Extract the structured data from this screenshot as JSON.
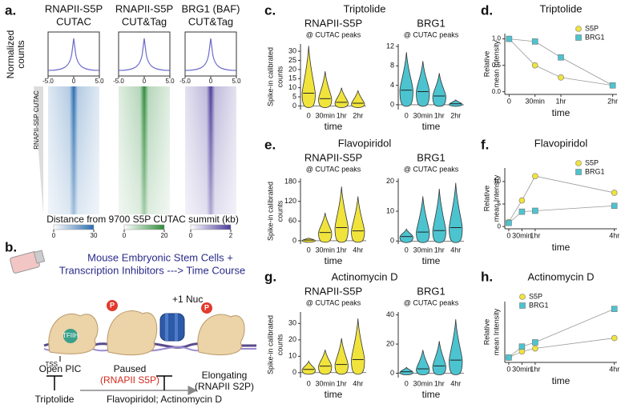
{
  "panel_labels": [
    "a.",
    "b.",
    "c.",
    "d.",
    "e.",
    "f.",
    "g.",
    "h."
  ],
  "heatmaps": {
    "columns": [
      {
        "title": [
          "RNAPII-S5P",
          "CUTAC"
        ],
        "colorbar": [
          0,
          30
        ],
        "color": "#2b6cb0"
      },
      {
        "title": [
          "RNAPII-S5P",
          "CUT&Tag"
        ],
        "colorbar": [
          0,
          20
        ],
        "color": "#2e8b3a"
      },
      {
        "title": [
          "BRG1 (BAF)",
          "CUT&Tag"
        ],
        "colorbar": [
          0,
          2
        ],
        "color": "#4b3a9a"
      }
    ],
    "profile_xlim": [
      -5,
      5
    ],
    "profile_xticks": [
      {
        "value": -5,
        "label": "-5.0"
      },
      0,
      {
        "value": 5,
        "label": "5.0"
      }
    ],
    "ylabel": [
      "Normalized",
      "counts"
    ],
    "row_label": "RNAPII-S5P CUTAC",
    "xlabel": "Distance from 9700 S5P CUTAC summit (kb)"
  },
  "schematic": {
    "cells": [
      "Mouse Embryonic Stem Cells +",
      "Transcription Inhibitors ---> Time Course"
    ],
    "nuc": "+1 Nuc",
    "tfiih": "TFIIH",
    "tss": "TSS",
    "phospho": "P",
    "stages": [
      {
        "name": "Open PIC"
      },
      {
        "name": "Paused",
        "detail": "(RNAPII S5P)"
      },
      {
        "name": "Elongating",
        "detail": "(RNAPII S2P)"
      }
    ],
    "inhibitors": [
      "Triptolide",
      "Flavopiridol; Actinomycin D"
    ]
  },
  "chart_data": [
    {
      "type": "violin",
      "title": "Triptolide",
      "subtitle": [
        "RNAPII-S5P",
        "@ CUTAC peaks"
      ],
      "ylabel": [
        "Spike-in calibrated",
        "counts"
      ],
      "xlabel": "time",
      "categories": [
        "0",
        "30min",
        "1hr",
        "2hr"
      ],
      "color": "#f0e43c",
      "ylim": [
        -2,
        34
      ],
      "yticks": [
        0,
        5,
        10,
        15,
        20,
        25,
        30
      ],
      "medians": [
        7,
        4,
        2,
        1.5
      ],
      "maxima": [
        33,
        19,
        10,
        8.5
      ]
    },
    {
      "type": "violin",
      "subtitle": [
        "BRG1",
        "@ CUTAC peaks"
      ],
      "xlabel": "time",
      "categories": [
        "0",
        "30min",
        "1hr",
        "2hr"
      ],
      "color": "#4cc4d0",
      "ylim": [
        -1,
        12.5
      ],
      "yticks": [
        0,
        4,
        8,
        12
      ],
      "medians": [
        3,
        2.7,
        1.8,
        0.2
      ],
      "maxima": [
        10.8,
        9,
        6.5,
        1
      ]
    },
    {
      "type": "scatter",
      "title": "Triptolide",
      "ylabel": [
        "Relative",
        "mean Intensity"
      ],
      "xlabel": "time",
      "legend": "upper right",
      "x": [
        0,
        30,
        60,
        120
      ],
      "xlim": [
        -5,
        125
      ],
      "xticks": [
        0,
        {
          "value": 30,
          "label": "30min"
        },
        {
          "value": 60,
          "label": "1hr"
        },
        {
          "value": 120,
          "label": "2hr"
        }
      ],
      "ylim": [
        -0.05,
        1.1
      ],
      "yticks": [
        {
          "value": 0,
          "label": "0.0"
        },
        {
          "value": 0.5,
          "label": "0.5"
        },
        {
          "value": 1,
          "label": "1.0"
        }
      ],
      "series": [
        {
          "name": "S5P",
          "color": "#f0e43c",
          "values": [
            1.0,
            0.5,
            0.27,
            0.12
          ]
        },
        {
          "name": "BRG1",
          "color": "#4cc4d0",
          "values": [
            1.0,
            0.95,
            0.65,
            0.12
          ]
        }
      ]
    },
    {
      "type": "violin",
      "title": "Flavopiridol",
      "subtitle": [
        "RNAPII-S5P",
        "@ CUTAC peaks"
      ],
      "ylabel": [
        "Spike-in calibrated",
        "counts"
      ],
      "xlabel": "time",
      "categories": [
        "0",
        "30min",
        "1hr",
        "4hr"
      ],
      "color": "#f0e43c",
      "ylim": [
        -10,
        190
      ],
      "yticks": [
        0,
        60,
        120,
        180
      ],
      "medians": [
        2,
        25,
        40,
        30
      ],
      "maxima": [
        8,
        85,
        165,
        135
      ]
    },
    {
      "type": "violin",
      "subtitle": [
        "BRG1",
        "@ CUTAC peaks"
      ],
      "xlabel": "time",
      "categories": [
        "0",
        "30min",
        "1hr",
        "4hr"
      ],
      "color": "#4cc4d0",
      "ylim": [
        -1,
        21
      ],
      "yticks": [
        0,
        10,
        20
      ],
      "medians": [
        1.5,
        3,
        3.5,
        4.5
      ],
      "maxima": [
        4,
        15,
        17.5,
        19.5
      ]
    },
    {
      "type": "scatter",
      "title": "Flavopiridol",
      "ylabel": [
        "Relative",
        "mean Intensity"
      ],
      "xlabel": "time",
      "legend": "upper right",
      "x": [
        0,
        0.5,
        1,
        4
      ],
      "xlim": [
        -0.15,
        4.1
      ],
      "xticks": [
        0,
        {
          "value": 0.5,
          "label": "30min"
        },
        {
          "value": 1,
          "label": "1hr"
        },
        {
          "value": 4,
          "label": "4hr"
        }
      ],
      "ylim": [
        -0.5,
        13
      ],
      "yticks": [
        0,
        5,
        10
      ],
      "series": [
        {
          "name": "S5P",
          "color": "#f0e43c",
          "values": [
            1,
            5.8,
            11.2,
            7.5
          ]
        },
        {
          "name": "BRG1",
          "color": "#4cc4d0",
          "values": [
            0.8,
            3.3,
            3.5,
            4.6
          ]
        }
      ]
    },
    {
      "type": "violin",
      "title": "Actinomycin D",
      "subtitle": [
        "RNAPII-S5P",
        "@ CUTAC peaks"
      ],
      "ylabel": [
        "Spike-in calibrated",
        "counts"
      ],
      "xlabel": "time",
      "categories": [
        "0",
        "30min",
        "1hr",
        "4hr"
      ],
      "color": "#f0e43c",
      "ylim": [
        -3,
        37
      ],
      "yticks": [
        0,
        10,
        20,
        30
      ],
      "medians": [
        2,
        4,
        5,
        8
      ],
      "maxima": [
        7,
        14,
        21,
        33
      ]
    },
    {
      "type": "violin",
      "subtitle": [
        "BRG1",
        "@ CUTAC peaks"
      ],
      "xlabel": "time",
      "categories": [
        "0",
        "30min",
        "1hr",
        "4hr"
      ],
      "color": "#4cc4d0",
      "ylim": [
        -3,
        42
      ],
      "yticks": [
        0,
        20,
        40
      ],
      "medians": [
        1,
        3,
        5,
        9
      ],
      "maxima": [
        4,
        16,
        22,
        37
      ]
    },
    {
      "type": "scatter",
      "title": "Actinomycin D",
      "ylabel": [
        "Relative",
        "mean Intensity"
      ],
      "xlabel": "time",
      "legend": "upper left",
      "x": [
        0,
        0.5,
        1,
        4
      ],
      "xlim": [
        -0.15,
        4.1
      ],
      "xticks": [
        0,
        {
          "value": 0.5,
          "label": "30min"
        },
        {
          "value": 1,
          "label": "1hr"
        },
        {
          "value": 4,
          "label": "4hr"
        }
      ],
      "ylim": [
        0,
        10
      ],
      "series": [
        {
          "name": "S5P",
          "color": "#f0e43c",
          "values": [
            0.8,
            1.8,
            2.3,
            4.0
          ]
        },
        {
          "name": "BRG1",
          "color": "#4cc4d0",
          "values": [
            0.8,
            2.6,
            3.3,
            8.8
          ]
        }
      ]
    }
  ]
}
